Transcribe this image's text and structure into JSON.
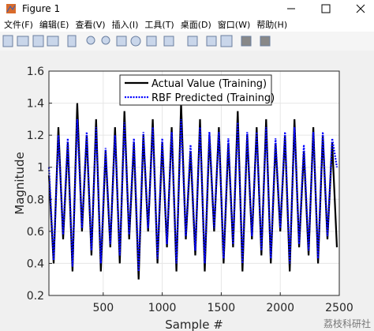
{
  "window": {
    "title": "Figure 1",
    "menu": [
      "文件(F)",
      "编辑(E)",
      "查看(V)",
      "插入(I)",
      "工具(T)",
      "桌面(D)",
      "窗口(W)",
      "帮助(H)"
    ]
  },
  "watermark": "荔枝科研社",
  "chart_data": {
    "type": "line",
    "xlabel": "Sample #",
    "ylabel": "Magnitude",
    "x": [
      40,
      80,
      120,
      160,
      200,
      240,
      280,
      320,
      360,
      400,
      440,
      480,
      520,
      560,
      600,
      640,
      680,
      720,
      760,
      800,
      840,
      880,
      920,
      960,
      1000,
      1040,
      1080,
      1120,
      1160,
      1200,
      1240,
      1280,
      1320,
      1360,
      1400,
      1440,
      1480,
      1520,
      1560,
      1600,
      1640,
      1680,
      1720,
      1760,
      1800,
      1840,
      1880,
      1920,
      1960,
      2000,
      2040,
      2080,
      2120,
      2160,
      2200,
      2240,
      2280,
      2320,
      2360,
      2400,
      2440,
      2480
    ],
    "series": [
      {
        "name": "Actual Value (Training)",
        "color": "#000000",
        "style": "solid",
        "values": [
          0.95,
          0.4,
          1.25,
          0.55,
          1.15,
          0.35,
          1.4,
          0.6,
          1.2,
          0.45,
          1.3,
          0.35,
          1.1,
          0.5,
          1.25,
          0.4,
          1.35,
          0.55,
          1.15,
          0.3,
          1.2,
          0.6,
          1.3,
          0.4,
          1.15,
          0.5,
          1.25,
          0.35,
          1.4,
          0.55,
          1.1,
          0.45,
          1.3,
          0.35,
          1.2,
          0.6,
          1.25,
          0.4,
          1.15,
          0.5,
          1.35,
          0.35,
          1.2,
          0.55,
          1.25,
          0.45,
          1.3,
          0.4,
          1.15,
          0.6,
          1.2,
          0.35,
          1.3,
          0.5,
          1.1,
          0.45,
          1.25,
          0.4,
          1.2,
          0.55,
          1.15,
          0.5
        ]
      },
      {
        "name": "RBF Predicted (Training)",
        "color": "#0000ff",
        "style": "dotted",
        "values": [
          1.0,
          0.42,
          1.2,
          0.58,
          1.18,
          0.38,
          1.3,
          0.62,
          1.22,
          0.48,
          1.25,
          0.4,
          1.12,
          0.52,
          1.2,
          0.45,
          1.28,
          0.58,
          1.18,
          0.35,
          1.22,
          0.62,
          1.25,
          0.43,
          1.18,
          0.52,
          1.22,
          0.4,
          1.3,
          0.57,
          1.14,
          0.48,
          1.25,
          0.4,
          1.22,
          0.62,
          1.22,
          0.43,
          1.18,
          0.52,
          1.28,
          0.4,
          1.22,
          0.57,
          1.22,
          0.48,
          1.25,
          0.43,
          1.18,
          0.62,
          1.22,
          0.4,
          1.25,
          0.52,
          1.14,
          0.48,
          1.22,
          0.43,
          1.22,
          0.57,
          1.18,
          1.0
        ]
      }
    ],
    "xlim": [
      40,
      2500
    ],
    "xticks": [
      500,
      1000,
      1500,
      2000,
      2500
    ],
    "ylim": [
      0.2,
      1.6
    ],
    "yticks": [
      0.2,
      0.4,
      0.6,
      0.8,
      1,
      1.2,
      1.4,
      1.6
    ],
    "grid": true,
    "legend": "north"
  }
}
